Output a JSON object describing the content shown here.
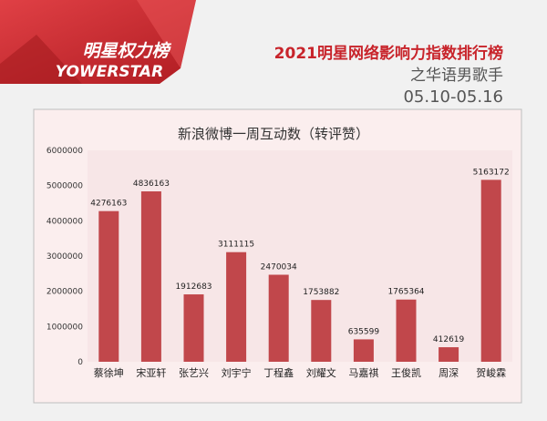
{
  "header": {
    "logo_cn": "明星权力榜",
    "logo_en": "YOWERSTAR",
    "title_line1": "2021明星网络影响力指数排行榜",
    "title_line2": "之华语男歌手",
    "title_line3": "05.10-05.16"
  },
  "colors": {
    "bar": "#c1474b",
    "title_red": "#c8242b",
    "logo_bg": "#d4282c",
    "panel_bg": "#fbeeee",
    "plot_bg": "#f7e6e7",
    "border": "#bebebe"
  },
  "chart_data": {
    "type": "bar",
    "title": "新浪微博一周互动数（转评赞）",
    "categories": [
      "蔡徐坤",
      "宋亚轩",
      "张艺兴",
      "刘宇宁",
      "丁程鑫",
      "刘耀文",
      "马嘉祺",
      "王俊凯",
      "周深",
      "贺峻霖"
    ],
    "values": [
      4276163,
      4836163,
      1912683,
      3111115,
      2470034,
      1753882,
      635599,
      1765364,
      412619,
      5163172
    ],
    "ylim": [
      0,
      6000000
    ],
    "yticks": [
      "0",
      "1000000",
      "2000000",
      "3000000",
      "4000000",
      "5000000",
      "6000000"
    ],
    "grid": false,
    "legend": "none"
  }
}
